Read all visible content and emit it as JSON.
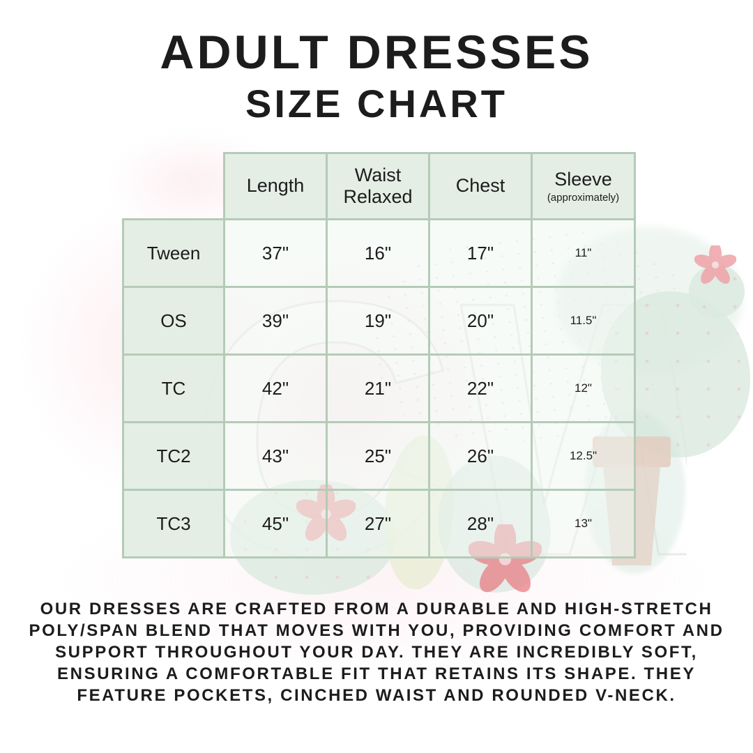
{
  "title": {
    "line1": "ADULT DRESSES",
    "line2": "SIZE CHART"
  },
  "watermark": "CW",
  "table": {
    "corner": "",
    "headers": [
      {
        "title": "Length",
        "note": ""
      },
      {
        "title": "Waist Relaxed",
        "note": ""
      },
      {
        "title": "Chest",
        "note": ""
      },
      {
        "title": "Sleeve",
        "note": "(approximately)"
      }
    ],
    "rows": [
      {
        "size": "Tween",
        "values": [
          "37\"",
          "16\"",
          "17\"",
          "11\""
        ]
      },
      {
        "size": "OS",
        "values": [
          "39\"",
          "19\"",
          "20\"",
          "11.5\""
        ]
      },
      {
        "size": "TC",
        "values": [
          "42\"",
          "21\"",
          "22\"",
          "12\""
        ]
      },
      {
        "size": "TC2",
        "values": [
          "43\"",
          "25\"",
          "26\"",
          "12.5\""
        ]
      },
      {
        "size": "TC3",
        "values": [
          "45\"",
          "27\"",
          "28\"",
          "13\""
        ]
      }
    ]
  },
  "description": "OUR DRESSES ARE CRAFTED FROM A DURABLE AND HIGH-STRETCH POLY/SPAN BLEND THAT MOVES WITH YOU, PROVIDING COMFORT AND SUPPORT THROUGHOUT YOUR DAY. THEY ARE INCREDIBLY SOFT, ENSURING A COMFORTABLE FIT THAT RETAINS ITS SHAPE. THEY FEATURE POCKETS, CINCHED WAIST AND ROUNDED V-NECK.",
  "colors": {
    "table_border": "#b4cbb7",
    "header_cell_fill": "#e3ede4",
    "accent_mint": "#dcebe1",
    "accent_pink": "#ef989e",
    "accent_salmon": "#f1c6b6",
    "text": "#1c1c1c"
  }
}
